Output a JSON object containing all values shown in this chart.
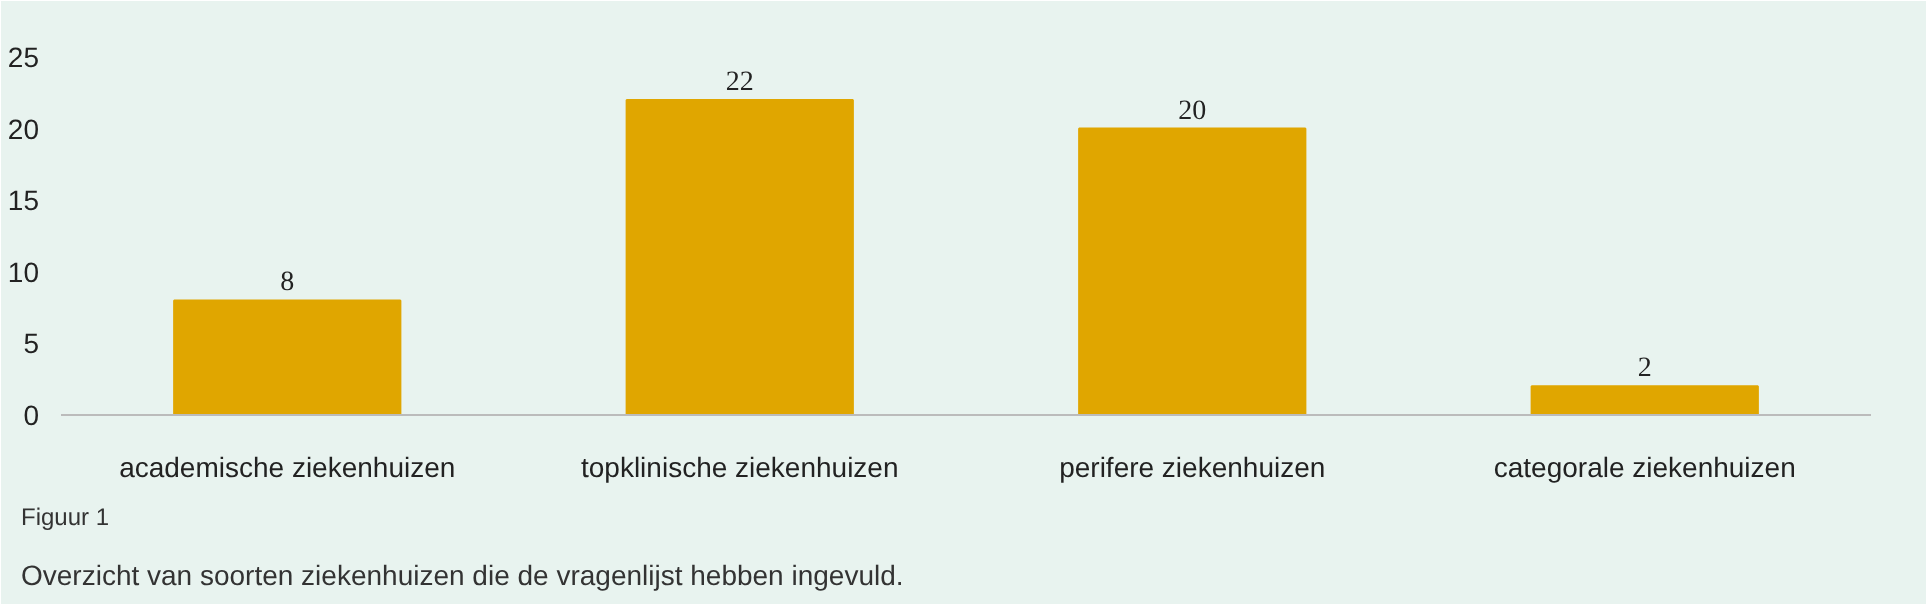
{
  "chart_data": {
    "type": "bar",
    "categories": [
      "academische ziekenhuizen",
      "topklinische ziekenhuizen",
      "perifere ziekenhuizen",
      "categorale ziekenhuizen"
    ],
    "values": [
      8,
      22,
      20,
      2
    ],
    "color": "#e0a600",
    "ylim": [
      0,
      25
    ],
    "yticks": [
      0,
      5,
      10,
      15,
      20,
      25
    ],
    "grid": false,
    "data_labels": true,
    "annotations": [
      "Figuur 1",
      "Overzicht van soorten ziekenhuizen die de vragenlijst hebben ingevuld."
    ]
  }
}
